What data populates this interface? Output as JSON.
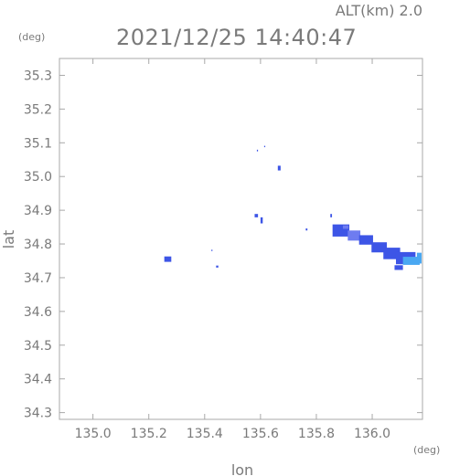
{
  "header": {
    "altitude_label": "ALT(km)  2.0",
    "timestamp": "2021/12/25  14:40:47"
  },
  "chart_data": {
    "type": "heatmap",
    "title": "2021/12/25  14:40:47",
    "xlabel": "lon",
    "ylabel": "lat",
    "x_unit": "(deg)",
    "y_unit": "(deg)",
    "xlim": [
      134.88,
      136.18
    ],
    "ylim": [
      34.28,
      35.35
    ],
    "x_ticks": [
      135.0,
      135.2,
      135.4,
      135.6,
      135.8,
      136.0
    ],
    "x_tick_labels": [
      "135.0",
      "135.2",
      "135.4",
      "135.6",
      "135.8",
      "136.0"
    ],
    "y_ticks": [
      34.3,
      34.4,
      34.5,
      34.6,
      34.7,
      34.8,
      34.9,
      35.0,
      35.1,
      35.2,
      35.3
    ],
    "y_tick_labels": [
      "34.3",
      "34.4",
      "34.5",
      "34.6",
      "34.7",
      "34.8",
      "34.9",
      "35.0",
      "35.1",
      "35.2",
      "35.3"
    ],
    "grid": false,
    "colors": {
      "axis": "#a8a8a8",
      "text": "#7a7a7a",
      "echo_blue": "#3d55e6",
      "echo_lightblue": "#4aa8f2",
      "echo_violet": "#6e7cf0"
    },
    "echoes": [
      {
        "lon": 135.268,
        "lat": 34.755,
        "dlon": 0.025,
        "dlat": 0.016,
        "color": "#3d55e6"
      },
      {
        "lon": 135.445,
        "lat": 34.733,
        "dlon": 0.008,
        "dlat": 0.006,
        "color": "#3d55e6"
      },
      {
        "lon": 135.426,
        "lat": 34.781,
        "dlon": 0.004,
        "dlat": 0.004,
        "color": "#3d55e6"
      },
      {
        "lon": 135.585,
        "lat": 34.884,
        "dlon": 0.012,
        "dlat": 0.01,
        "color": "#3d55e6"
      },
      {
        "lon": 135.604,
        "lat": 34.87,
        "dlon": 0.008,
        "dlat": 0.018,
        "color": "#3d55e6"
      },
      {
        "lon": 135.589,
        "lat": 35.077,
        "dlon": 0.004,
        "dlat": 0.005,
        "color": "#3d55e6"
      },
      {
        "lon": 135.615,
        "lat": 35.089,
        "dlon": 0.004,
        "dlat": 0.004,
        "color": "#3d55e6"
      },
      {
        "lon": 135.667,
        "lat": 35.025,
        "dlon": 0.01,
        "dlat": 0.014,
        "color": "#3d55e6"
      },
      {
        "lon": 135.765,
        "lat": 34.843,
        "dlon": 0.006,
        "dlat": 0.006,
        "color": "#3d55e6"
      },
      {
        "lon": 135.853,
        "lat": 34.884,
        "dlon": 0.006,
        "dlat": 0.01,
        "color": "#3d55e6"
      },
      {
        "lon": 135.888,
        "lat": 34.84,
        "dlon": 0.06,
        "dlat": 0.036,
        "color": "#3d55e6"
      },
      {
        "lon": 135.935,
        "lat": 34.825,
        "dlon": 0.045,
        "dlat": 0.03,
        "color": "#6e7cf0"
      },
      {
        "lon": 135.978,
        "lat": 34.812,
        "dlon": 0.05,
        "dlat": 0.028,
        "color": "#3d55e6"
      },
      {
        "lon": 136.025,
        "lat": 34.79,
        "dlon": 0.055,
        "dlat": 0.03,
        "color": "#3d55e6"
      },
      {
        "lon": 136.07,
        "lat": 34.772,
        "dlon": 0.06,
        "dlat": 0.034,
        "color": "#3d55e6"
      },
      {
        "lon": 136.12,
        "lat": 34.758,
        "dlon": 0.07,
        "dlat": 0.036,
        "color": "#3d55e6"
      },
      {
        "lon": 136.14,
        "lat": 34.75,
        "dlon": 0.06,
        "dlat": 0.024,
        "color": "#4aa8f2"
      },
      {
        "lon": 136.17,
        "lat": 34.758,
        "dlon": 0.02,
        "dlat": 0.032,
        "color": "#4aa8f2"
      },
      {
        "lon": 135.905,
        "lat": 34.85,
        "dlon": 0.02,
        "dlat": 0.01,
        "color": "#6e7cf0"
      },
      {
        "lon": 136.095,
        "lat": 34.73,
        "dlon": 0.03,
        "dlat": 0.014,
        "color": "#3d55e6"
      }
    ]
  }
}
